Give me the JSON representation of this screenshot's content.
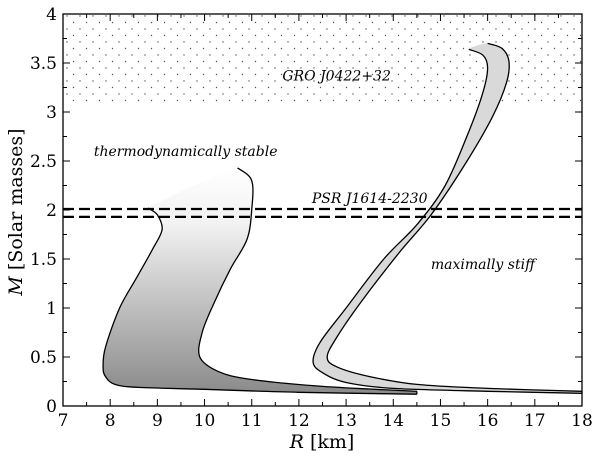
{
  "chart_data": {
    "type": "area",
    "xlabel_italic": "R",
    "xlabel_unit": " [km]",
    "ylabel_italic": "M",
    "ylabel_unit": " [Solar masses]",
    "xlim": [
      7,
      18
    ],
    "ylim": [
      0,
      4
    ],
    "xticks": [
      "7",
      "8",
      "9",
      "10",
      "11",
      "12",
      "13",
      "14",
      "15",
      "16",
      "17",
      "18"
    ],
    "yticks": [
      "0",
      "0.5",
      "1",
      "1.5",
      "2",
      "2.5",
      "3",
      "3.5",
      "4"
    ],
    "grid": false,
    "regions": [
      {
        "name": "GRO J0422+32",
        "y_from": 3.1,
        "y_to": 4.0,
        "pattern": "dots"
      }
    ],
    "hlines": [
      {
        "name": "PSR J1614-2230",
        "y": [
          1.93,
          2.01
        ],
        "style": "dashed"
      }
    ],
    "series": [
      {
        "name": "thermodynamically stable",
        "fill": "gradient-gray",
        "outer": [
          [
            14.5,
            0.12
          ],
          [
            12.0,
            0.14
          ],
          [
            10.0,
            0.17
          ],
          [
            8.6,
            0.19
          ],
          [
            8.1,
            0.22
          ],
          [
            7.9,
            0.3
          ],
          [
            7.85,
            0.4
          ],
          [
            7.9,
            0.6
          ],
          [
            8.2,
            1.0
          ],
          [
            8.55,
            1.3
          ],
          [
            8.9,
            1.6
          ],
          [
            9.1,
            1.8
          ],
          [
            9.0,
            1.95
          ],
          [
            8.8,
            2.02
          ]
        ],
        "inner": [
          [
            14.5,
            0.15
          ],
          [
            12.5,
            0.2
          ],
          [
            11.0,
            0.27
          ],
          [
            10.3,
            0.35
          ],
          [
            9.9,
            0.5
          ],
          [
            9.95,
            0.75
          ],
          [
            10.2,
            1.05
          ],
          [
            10.55,
            1.4
          ],
          [
            10.9,
            1.7
          ],
          [
            11.0,
            2.0
          ],
          [
            11.0,
            2.3
          ],
          [
            10.7,
            2.43
          ]
        ]
      },
      {
        "name": "maximally stiff",
        "fill": "light-gray",
        "outer": [
          [
            18.0,
            0.13
          ],
          [
            16.0,
            0.15
          ],
          [
            14.0,
            0.18
          ],
          [
            13.0,
            0.24
          ],
          [
            12.5,
            0.34
          ],
          [
            12.3,
            0.45
          ],
          [
            12.45,
            0.65
          ],
          [
            13.0,
            1.0
          ],
          [
            13.8,
            1.5
          ],
          [
            14.5,
            1.85
          ],
          [
            15.1,
            2.25
          ],
          [
            15.6,
            2.8
          ],
          [
            15.9,
            3.2
          ],
          [
            16.0,
            3.45
          ],
          [
            15.9,
            3.58
          ],
          [
            15.6,
            3.64
          ]
        ],
        "inner": [
          [
            18.0,
            0.15
          ],
          [
            16.0,
            0.18
          ],
          [
            14.5,
            0.22
          ],
          [
            13.5,
            0.3
          ],
          [
            12.8,
            0.4
          ],
          [
            12.6,
            0.5
          ],
          [
            12.8,
            0.7
          ],
          [
            13.3,
            1.05
          ],
          [
            14.1,
            1.55
          ],
          [
            14.8,
            1.95
          ],
          [
            15.5,
            2.45
          ],
          [
            16.1,
            2.95
          ],
          [
            16.4,
            3.3
          ],
          [
            16.45,
            3.52
          ],
          [
            16.3,
            3.65
          ],
          [
            16.0,
            3.7
          ]
        ]
      }
    ],
    "annotations": [
      {
        "text": "GRO J0422+32",
        "x": 12.8,
        "y": 3.32
      },
      {
        "text": "thermodynamically stable",
        "x": 9.6,
        "y": 2.55
      },
      {
        "text": "PSR J1614-2230",
        "x": 13.5,
        "y": 2.07
      },
      {
        "text": "maximally stiff",
        "x": 15.9,
        "y": 1.4
      }
    ]
  }
}
